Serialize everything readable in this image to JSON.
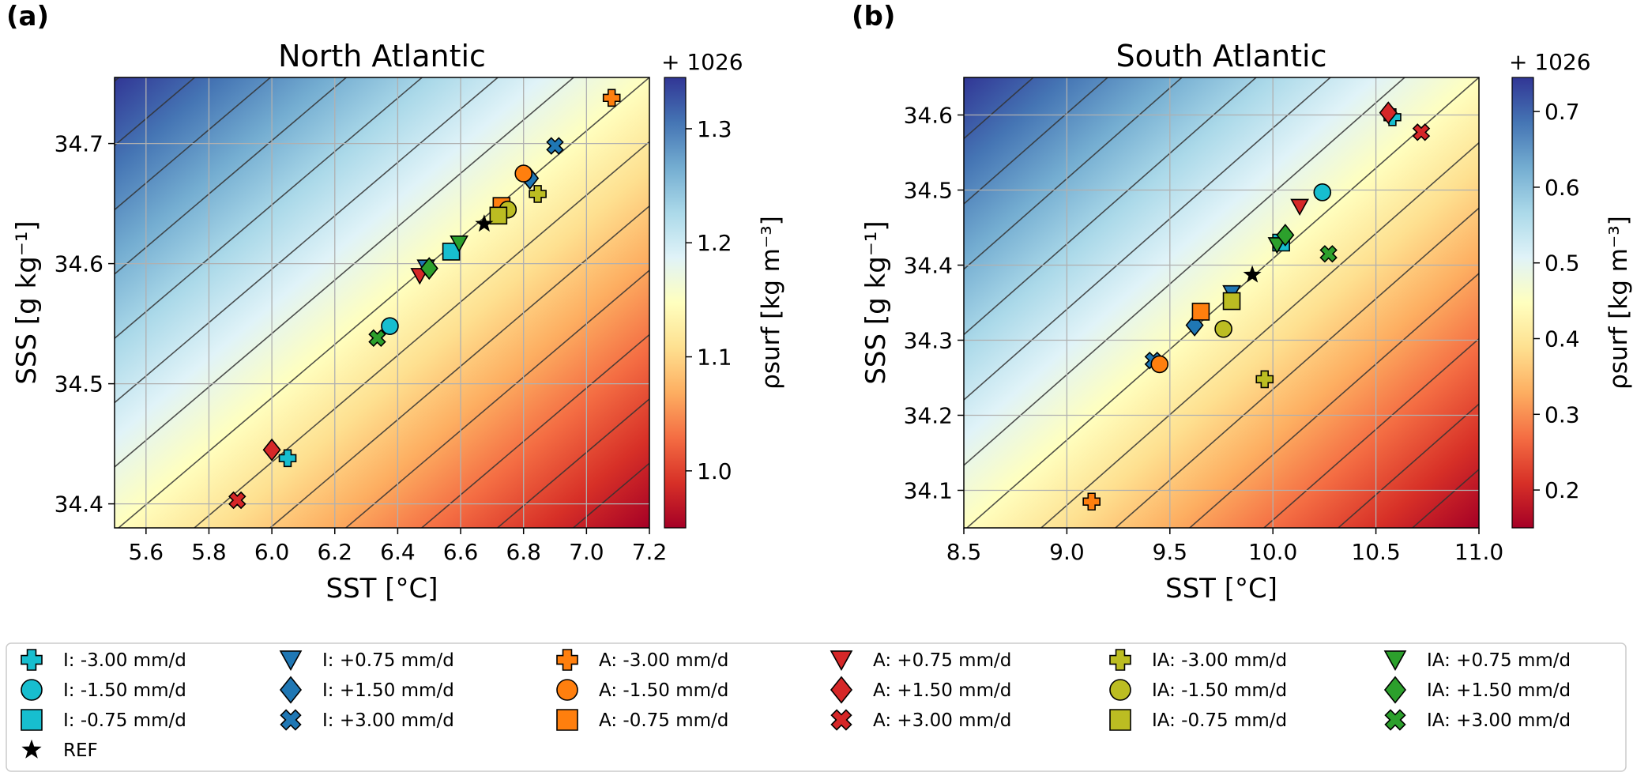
{
  "colors": {
    "cmap": [
      "#a50026",
      "#d73027",
      "#f46d43",
      "#fdae61",
      "#fee090",
      "#ffffbf",
      "#e0f3f8",
      "#abd9e9",
      "#74add1",
      "#4575b4",
      "#313695"
    ],
    "I": "#17becf",
    "A": "#ff7f0e",
    "IA": "#bcbd22",
    "I_plus": "#1f77b4",
    "A_plus": "#d62728",
    "IA_plus": "#2ca02c",
    "REF": "#000000",
    "contour": "#333333",
    "grid": "#b0b0b0"
  },
  "chart_data": [
    {
      "type": "scatter",
      "panel_label": "(a)",
      "title": "North Atlantic",
      "xlabel": "SST [°C]",
      "ylabel": "SSS [g kg⁻¹]",
      "xlim": [
        5.5,
        7.2
      ],
      "ylim": [
        34.38,
        34.755
      ],
      "xticks": [
        5.6,
        5.8,
        6.0,
        6.2,
        6.4,
        6.6,
        6.8,
        7.0,
        7.2
      ],
      "xtick_labels": [
        "5.6",
        "5.8",
        "6.0",
        "6.2",
        "6.4",
        "6.6",
        "6.8",
        "7.0",
        "7.2"
      ],
      "yticks": [
        34.4,
        34.5,
        34.6,
        34.7
      ],
      "ytick_labels": [
        "34.4",
        "34.5",
        "34.6",
        "34.7"
      ],
      "grid": true,
      "background": "surface density field",
      "colorbar": {
        "offset_label": "+ 1026",
        "label": "ρsurf [kg m⁻³]",
        "range": [
          0.95,
          1.345
        ],
        "ticks": [
          1.0,
          1.1,
          1.2,
          1.3
        ],
        "tick_labels": [
          "1.0",
          "1.1",
          "1.2",
          "1.3"
        ]
      },
      "points": [
        {
          "series": "I: -3.00 mm/d",
          "x": 6.05,
          "y": 34.438
        },
        {
          "series": "I: -1.50 mm/d",
          "x": 6.375,
          "y": 34.548
        },
        {
          "series": "I: -0.75 mm/d",
          "x": 6.57,
          "y": 34.61
        },
        {
          "series": "I: +0.75 mm/d",
          "x": 6.49,
          "y": 34.597
        },
        {
          "series": "I: +1.50 mm/d",
          "x": 6.82,
          "y": 34.671
        },
        {
          "series": "I: +3.00 mm/d",
          "x": 6.9,
          "y": 34.698
        },
        {
          "series": "A: -3.00 mm/d",
          "x": 7.08,
          "y": 34.738
        },
        {
          "series": "A: -1.50 mm/d",
          "x": 6.8,
          "y": 34.675
        },
        {
          "series": "A: -0.75 mm/d",
          "x": 6.73,
          "y": 34.648
        },
        {
          "series": "A: +0.75 mm/d",
          "x": 6.47,
          "y": 34.59
        },
        {
          "series": "A: +1.50 mm/d",
          "x": 6.0,
          "y": 34.445
        },
        {
          "series": "A: +3.00 mm/d",
          "x": 5.89,
          "y": 34.403
        },
        {
          "series": "IA: -3.00 mm/d",
          "x": 6.845,
          "y": 34.658
        },
        {
          "series": "IA: -1.50 mm/d",
          "x": 6.75,
          "y": 34.645
        },
        {
          "series": "IA: -0.75 mm/d",
          "x": 6.72,
          "y": 34.64
        },
        {
          "series": "IA: +0.75 mm/d",
          "x": 6.595,
          "y": 34.617
        },
        {
          "series": "IA: +1.50 mm/d",
          "x": 6.5,
          "y": 34.596
        },
        {
          "series": "IA: +3.00 mm/d",
          "x": 6.335,
          "y": 34.538
        },
        {
          "series": "REF",
          "x": 6.675,
          "y": 34.633
        }
      ]
    },
    {
      "type": "scatter",
      "panel_label": "(b)",
      "title": "South Atlantic",
      "xlabel": "SST [°C]",
      "ylabel": "SSS [g kg⁻¹]",
      "xlim": [
        8.5,
        11.0
      ],
      "ylim": [
        34.05,
        34.65
      ],
      "xticks": [
        8.5,
        9.0,
        9.5,
        10.0,
        10.5,
        11.0
      ],
      "xtick_labels": [
        "8.5",
        "9.0",
        "9.5",
        "10.0",
        "10.5",
        "11.0"
      ],
      "yticks": [
        34.1,
        34.2,
        34.3,
        34.4,
        34.5,
        34.6
      ],
      "ytick_labels": [
        "34.1",
        "34.2",
        "34.3",
        "34.4",
        "34.5",
        "34.6"
      ],
      "grid": true,
      "background": "surface density field",
      "colorbar": {
        "offset_label": "+ 1026",
        "label": "ρsurf [kg m⁻³]",
        "range": [
          0.15,
          0.745
        ],
        "ticks": [
          0.2,
          0.3,
          0.4,
          0.5,
          0.6,
          0.7
        ],
        "tick_labels": [
          "0.2",
          "0.3",
          "0.4",
          "0.5",
          "0.6",
          "0.7"
        ]
      },
      "points": [
        {
          "series": "I: -3.00 mm/d",
          "x": 10.58,
          "y": 34.597
        },
        {
          "series": "I: -1.50 mm/d",
          "x": 10.24,
          "y": 34.497
        },
        {
          "series": "I: -0.75 mm/d",
          "x": 10.04,
          "y": 34.43
        },
        {
          "series": "I: +0.75 mm/d",
          "x": 9.8,
          "y": 34.363
        },
        {
          "series": "I: +1.50 mm/d",
          "x": 9.62,
          "y": 34.32
        },
        {
          "series": "I: +3.00 mm/d",
          "x": 9.42,
          "y": 34.273
        },
        {
          "series": "A: -3.00 mm/d",
          "x": 9.12,
          "y": 34.085
        },
        {
          "series": "A: -1.50 mm/d",
          "x": 9.45,
          "y": 34.268
        },
        {
          "series": "A: -0.75 mm/d",
          "x": 9.65,
          "y": 34.338
        },
        {
          "series": "A: +0.75 mm/d",
          "x": 10.13,
          "y": 34.478
        },
        {
          "series": "A: +1.50 mm/d",
          "x": 10.56,
          "y": 34.603
        },
        {
          "series": "A: +3.00 mm/d",
          "x": 10.72,
          "y": 34.577
        },
        {
          "series": "IA: -3.00 mm/d",
          "x": 9.96,
          "y": 34.248
        },
        {
          "series": "IA: -1.50 mm/d",
          "x": 9.76,
          "y": 34.315
        },
        {
          "series": "IA: -0.75 mm/d",
          "x": 9.8,
          "y": 34.352
        },
        {
          "series": "IA: +0.75 mm/d",
          "x": 10.02,
          "y": 34.427
        },
        {
          "series": "IA: +1.50 mm/d",
          "x": 10.06,
          "y": 34.44
        },
        {
          "series": "IA: +3.00 mm/d",
          "x": 10.27,
          "y": 34.415
        },
        {
          "series": "REF",
          "x": 9.9,
          "y": 34.387
        }
      ]
    }
  ],
  "legend": {
    "placement": "bottom",
    "columns": [
      [
        {
          "label": "I: -3.00 mm/d",
          "marker": "plus",
          "color": "#17becf"
        },
        {
          "label": "I: -1.50 mm/d",
          "marker": "circle",
          "color": "#17becf"
        },
        {
          "label": "I: -0.75 mm/d",
          "marker": "square",
          "color": "#17becf"
        },
        {
          "label": "REF",
          "marker": "star",
          "color": "#000000"
        }
      ],
      [
        {
          "label": "I: +0.75 mm/d",
          "marker": "triangle-down",
          "color": "#1f77b4"
        },
        {
          "label": "I: +1.50 mm/d",
          "marker": "diamond",
          "color": "#1f77b4"
        },
        {
          "label": "I: +3.00 mm/d",
          "marker": "cross",
          "color": "#1f77b4"
        }
      ],
      [
        {
          "label": "A: -3.00 mm/d",
          "marker": "plus",
          "color": "#ff7f0e"
        },
        {
          "label": "A: -1.50 mm/d",
          "marker": "circle",
          "color": "#ff7f0e"
        },
        {
          "label": "A: -0.75 mm/d",
          "marker": "square",
          "color": "#ff7f0e"
        }
      ],
      [
        {
          "label": "A: +0.75 mm/d",
          "marker": "triangle-down",
          "color": "#d62728"
        },
        {
          "label": "A: +1.50 mm/d",
          "marker": "diamond",
          "color": "#d62728"
        },
        {
          "label": "A: +3.00 mm/d",
          "marker": "cross",
          "color": "#d62728"
        }
      ],
      [
        {
          "label": "IA: -3.00 mm/d",
          "marker": "plus",
          "color": "#bcbd22"
        },
        {
          "label": "IA: -1.50 mm/d",
          "marker": "circle",
          "color": "#bcbd22"
        },
        {
          "label": "IA: -0.75 mm/d",
          "marker": "square",
          "color": "#bcbd22"
        }
      ],
      [
        {
          "label": "IA: +0.75 mm/d",
          "marker": "triangle-down",
          "color": "#2ca02c"
        },
        {
          "label": "IA: +1.50 mm/d",
          "marker": "diamond",
          "color": "#2ca02c"
        },
        {
          "label": "IA: +3.00 mm/d",
          "marker": "cross",
          "color": "#2ca02c"
        }
      ]
    ]
  }
}
